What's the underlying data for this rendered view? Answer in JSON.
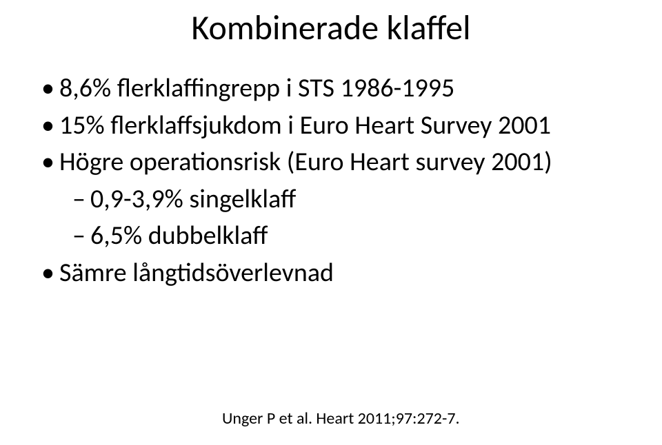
{
  "title": "Kombinerade klaffel",
  "bullets": {
    "b1": "8,6% flerklaffingrepp i STS 1986-1995",
    "b2": "15% flerklaffsjukdom i Euro Heart Survey 2001",
    "b3": "Högre operationsrisk (Euro Heart survey 2001)",
    "b3a": "0,9-3,9% singelklaff",
    "b3b": "6,5% dubbelklaff",
    "b4": "Sämre långtidsöverlevnad"
  },
  "citation": "Unger P et al. Heart 2011;97:272-7.",
  "colors": {
    "background": "#ffffff",
    "text": "#000000"
  },
  "fontsize": {
    "title": 50,
    "body": 38,
    "citation": 24
  }
}
